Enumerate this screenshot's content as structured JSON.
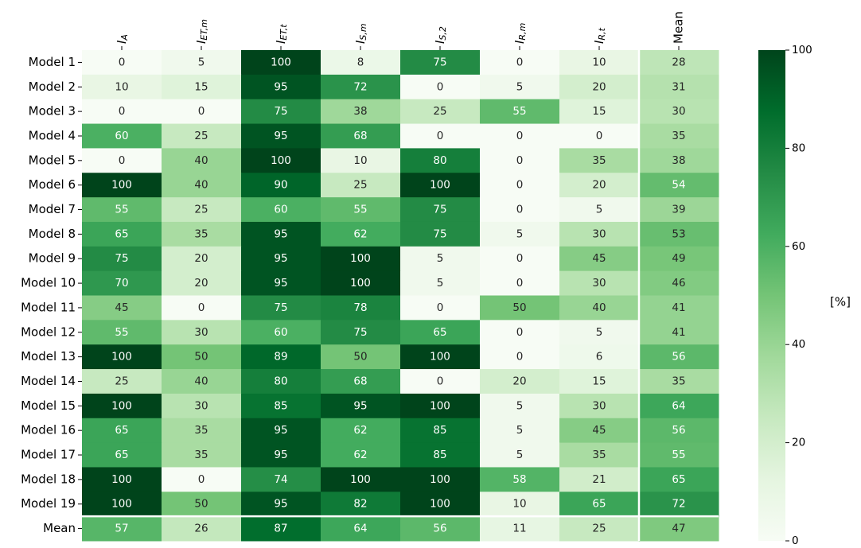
{
  "chart_data": {
    "type": "heatmap",
    "x_categories": [
      {
        "base": "I",
        "sub": "A"
      },
      {
        "base": "I",
        "sub": "ET,m"
      },
      {
        "base": "I",
        "sub": "ET,t"
      },
      {
        "base": "I",
        "sub": "S,m"
      },
      {
        "base": "I",
        "sub": "S,2"
      },
      {
        "base": "I",
        "sub": "R,m"
      },
      {
        "base": "I",
        "sub": "R,t"
      },
      "Mean"
    ],
    "y_categories": [
      "Model 1",
      "Model 2",
      "Model 3",
      "Model 4",
      "Model 5",
      "Model 6",
      "Model 7",
      "Model 8",
      "Model 9",
      "Model 10",
      "Model 11",
      "Model 12",
      "Model 13",
      "Model 14",
      "Model 15",
      "Model 16",
      "Model 17",
      "Model 18",
      "Model 19",
      "Mean"
    ],
    "values": [
      [
        0,
        5,
        100,
        8,
        75,
        0,
        10,
        28
      ],
      [
        10,
        15,
        95,
        72,
        0,
        5,
        20,
        31
      ],
      [
        0,
        0,
        75,
        38,
        25,
        55,
        15,
        30
      ],
      [
        60,
        25,
        95,
        68,
        0,
        0,
        0,
        35
      ],
      [
        0,
        40,
        100,
        10,
        80,
        0,
        35,
        38
      ],
      [
        100,
        40,
        90,
        25,
        100,
        0,
        20,
        54
      ],
      [
        55,
        25,
        60,
        55,
        75,
        0,
        5,
        39
      ],
      [
        65,
        35,
        95,
        62,
        75,
        5,
        30,
        53
      ],
      [
        75,
        20,
        95,
        100,
        5,
        0,
        45,
        49
      ],
      [
        70,
        20,
        95,
        100,
        5,
        0,
        30,
        46
      ],
      [
        45,
        0,
        75,
        78,
        0,
        50,
        40,
        41
      ],
      [
        55,
        30,
        60,
        75,
        65,
        0,
        5,
        41
      ],
      [
        100,
        50,
        89,
        50,
        100,
        0,
        6,
        56
      ],
      [
        25,
        40,
        80,
        68,
        0,
        20,
        15,
        35
      ],
      [
        100,
        30,
        85,
        95,
        100,
        5,
        30,
        64
      ],
      [
        65,
        35,
        95,
        62,
        85,
        5,
        45,
        56
      ],
      [
        65,
        35,
        95,
        62,
        85,
        5,
        35,
        55
      ],
      [
        100,
        0,
        74,
        100,
        100,
        58,
        21,
        65
      ],
      [
        100,
        50,
        95,
        82,
        100,
        10,
        65,
        72
      ],
      [
        57,
        26,
        87,
        64,
        56,
        11,
        25,
        47
      ]
    ],
    "zlim": [
      0,
      100
    ],
    "zticks": [
      0,
      20,
      40,
      60,
      80,
      100
    ],
    "colorbar_label": "[%]",
    "colors": [
      "#f7fcf5",
      "#e5f5e0",
      "#c7e9c0",
      "#a1d99b",
      "#74c476",
      "#41ab5d",
      "#238b45",
      "#006d2c",
      "#00441b"
    ]
  }
}
